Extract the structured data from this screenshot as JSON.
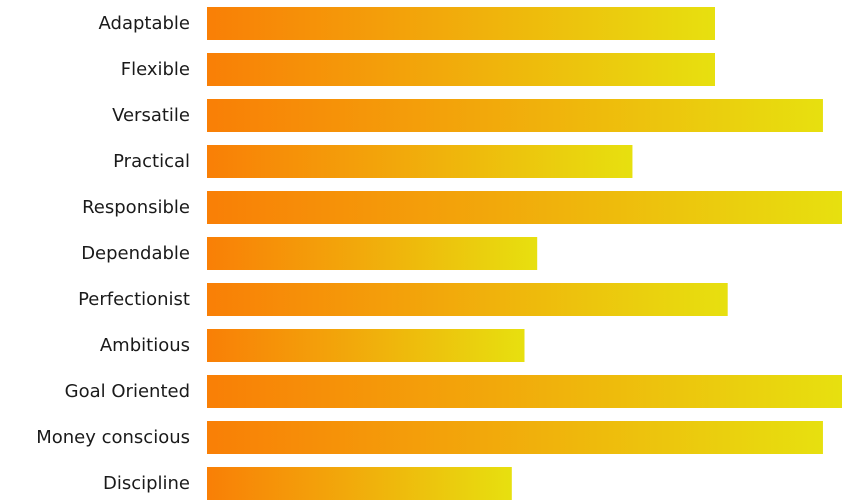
{
  "chart_data": {
    "type": "bar",
    "orientation": "horizontal",
    "title": "",
    "xlabel": "",
    "ylabel": "",
    "categories": [
      "Adaptable",
      "Flexible",
      "Versatile",
      "Practical",
      "Responsible",
      "Dependable",
      "Perfectionist",
      "Ambitious",
      "Goal Oriented",
      "Money conscious",
      "Discipline"
    ],
    "values": [
      80,
      80,
      97,
      67,
      100,
      52,
      82,
      50,
      100,
      97,
      48
    ],
    "xlim": [
      0,
      100
    ],
    "grid": false,
    "legend": "none",
    "colors": {
      "gradient_start": "#f97f06",
      "gradient_mid": "#f2a80b",
      "gradient_end": "#e7e00f",
      "label_text": "#1a1a1a",
      "background": "#ffffff"
    }
  }
}
